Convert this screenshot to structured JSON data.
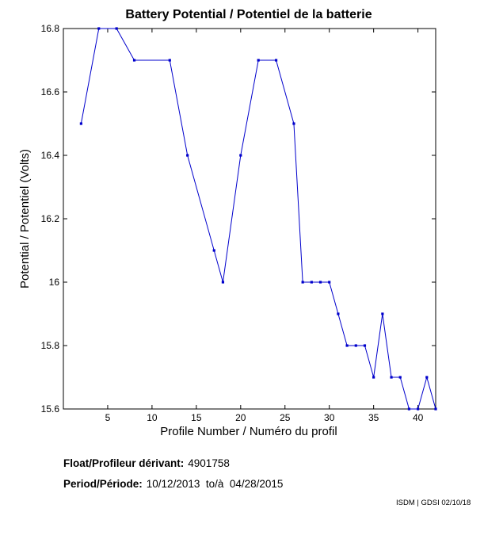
{
  "chart_data": {
    "type": "line",
    "title": "Battery Potential / Potentiel de la batterie",
    "xlabel": "Profile Number / Numéro du profil",
    "ylabel": "Potential / Potentiel (Volts)",
    "xlim": [
      0,
      42
    ],
    "ylim": [
      15.6,
      16.8
    ],
    "xticks": [
      5,
      10,
      15,
      20,
      25,
      30,
      35,
      40
    ],
    "yticks": [
      15.6,
      15.8,
      16,
      16.2,
      16.4,
      16.6,
      16.8
    ],
    "ytick_labels": [
      "15.6",
      "15.8",
      "16",
      "16.2",
      "16.4",
      "16.6",
      "16.8"
    ],
    "grid": false,
    "series": [
      {
        "name": "Battery Potential",
        "color": "#0000cc",
        "x": [
          2,
          4,
          6,
          8,
          12,
          14,
          17,
          18,
          20,
          22,
          24,
          26,
          27,
          28,
          29,
          30,
          31,
          32,
          33,
          34,
          35,
          36,
          37,
          38,
          39,
          40,
          41,
          42
        ],
        "y": [
          16.5,
          16.8,
          16.8,
          16.7,
          16.7,
          16.4,
          16.1,
          16.0,
          16.4,
          16.7,
          16.7,
          16.5,
          16.0,
          16.0,
          16.0,
          16.0,
          15.9,
          15.8,
          15.8,
          15.8,
          15.7,
          15.9,
          15.7,
          15.7,
          15.6,
          15.6,
          15.7,
          15.6
        ]
      }
    ]
  },
  "info": {
    "float_label": "Float/Profileur dérivant:",
    "float_value": "4901758",
    "period_label": "Period/Période:",
    "period_value": "10/12/2013  to/à  04/28/2015"
  },
  "credit": "ISDM | GDSI 02/10/18"
}
